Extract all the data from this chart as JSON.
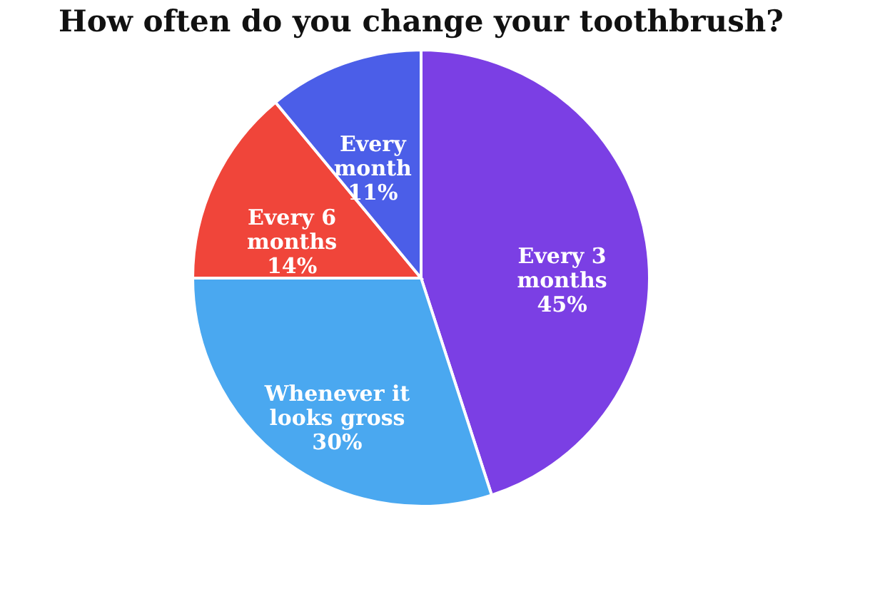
{
  "chart_data": {
    "type": "pie",
    "title": "How often do you change your toothbrush?",
    "categories": [
      "Every 3 months",
      "Whenever it looks gross",
      "Every 6 months",
      "Every month"
    ],
    "values": [
      45,
      30,
      14,
      11
    ],
    "colors": [
      "#7b3fe4",
      "#4aa8f0",
      "#f0453a",
      "#4b5ee8"
    ],
    "value_labels": [
      "45%",
      "30%",
      "14%",
      "11%"
    ]
  }
}
